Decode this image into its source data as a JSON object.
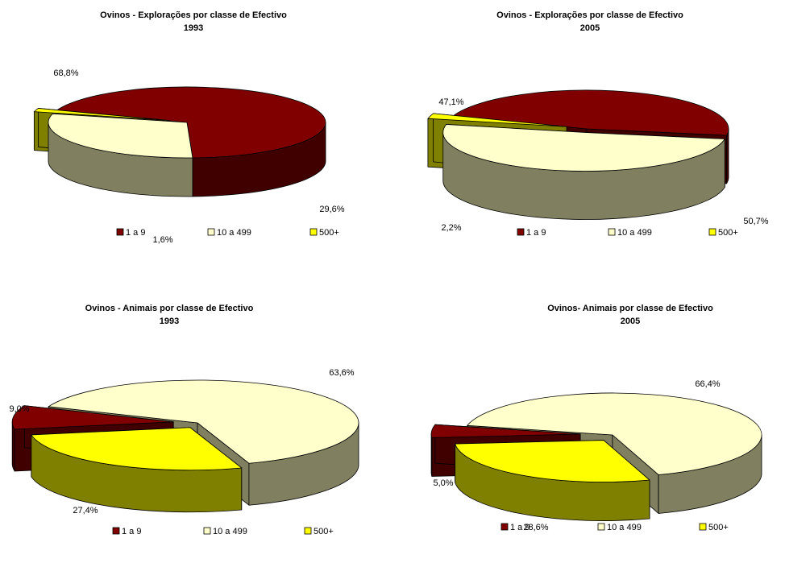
{
  "colors": {
    "1 a 9": {
      "top": "#800000",
      "side": "#400000"
    },
    "10 a 499": {
      "top": "#FFFFCC",
      "side": "#808060"
    },
    "500+": {
      "top": "#FFFF00",
      "side": "#808000"
    }
  },
  "legend_items": [
    "1 a 9",
    "10 a 499",
    "500+"
  ],
  "chart_data": [
    {
      "type": "pie",
      "title": "Ovinos - Explorações por classe de Efectivo",
      "subtitle": "1993",
      "categories": [
        "1 a 9",
        "10 a 499",
        "500+"
      ],
      "values": [
        68.8,
        29.6,
        1.6
      ],
      "data_labels": [
        "68,8%",
        "29,6%",
        "1,6%"
      ],
      "legend": "bottom"
    },
    {
      "type": "pie",
      "title": "Ovinos - Explorações por classe de Efectivo",
      "subtitle": "2005",
      "categories": [
        "1 a 9",
        "10 a 499",
        "500+"
      ],
      "values": [
        47.1,
        50.7,
        2.2
      ],
      "data_labels": [
        "47,1%",
        "50,7%",
        "2,2%"
      ],
      "legend": "bottom"
    },
    {
      "type": "pie",
      "title": "Ovinos - Animais por classe de Efectivo",
      "subtitle": "1993",
      "categories": [
        "1 a 9",
        "10 a 499",
        "500+"
      ],
      "values": [
        9.0,
        63.6,
        27.4
      ],
      "data_labels": [
        "9,0%",
        "63,6%",
        "27,4%"
      ],
      "legend": "bottom"
    },
    {
      "type": "pie",
      "title": "Ovinos- Animais por classe de Efectivo",
      "subtitle": "2005",
      "categories": [
        "1 a 9",
        "10 a 499",
        "500+"
      ],
      "values": [
        5.0,
        66.4,
        28.6
      ],
      "data_labels": [
        "5,0%",
        "66,4%",
        "28,6%"
      ],
      "legend": "bottom"
    }
  ]
}
